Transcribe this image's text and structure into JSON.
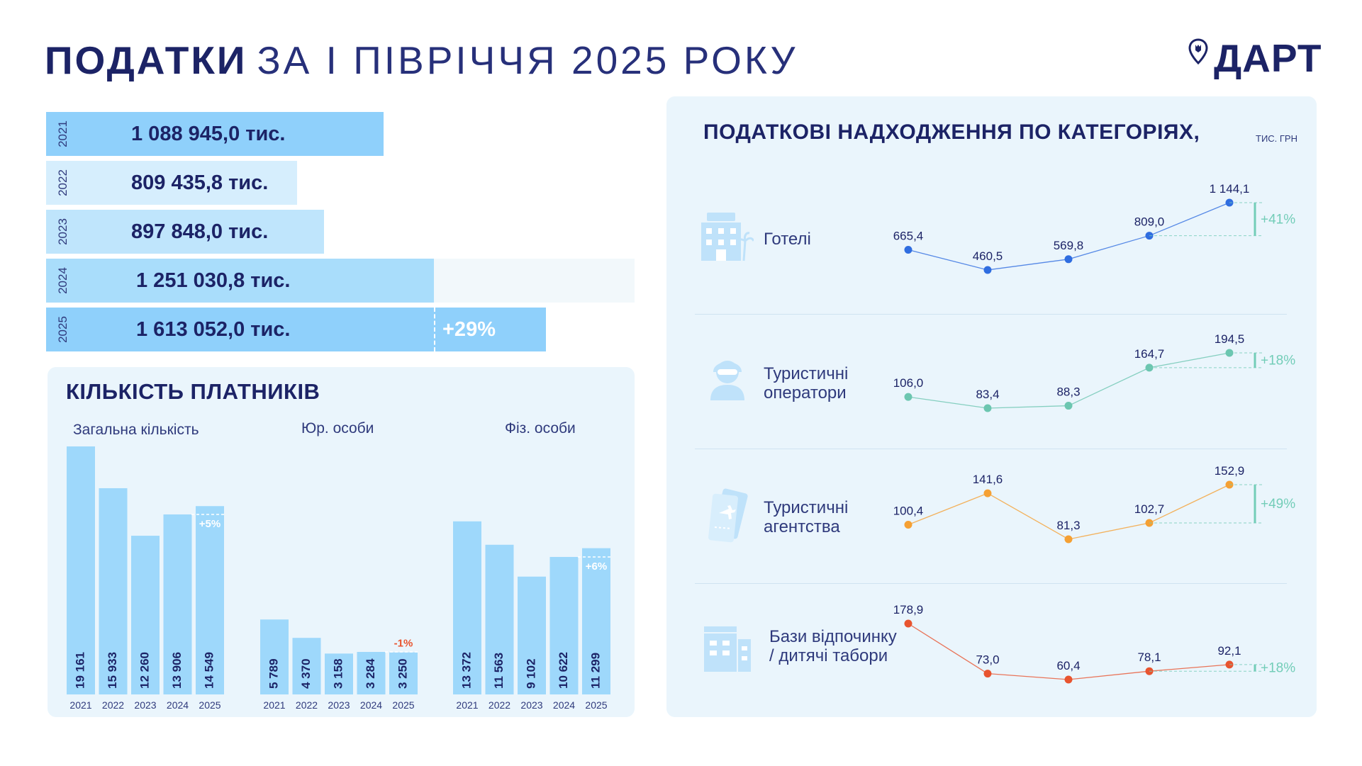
{
  "header": {
    "title_bold": "ПОДАТКИ",
    "title_rest": "ЗА І ПІВРІЧЧЯ 2025 РОКУ",
    "logo_text": "ДАРТ"
  },
  "totals": [
    {
      "year": "2021",
      "value": 1088945.0,
      "label": "1 088 945,0  тис."
    },
    {
      "year": "2022",
      "value": 809435.8,
      "label": "809 435,8  тис."
    },
    {
      "year": "2023",
      "value": 897848.0,
      "label": "897 848,0  тис."
    },
    {
      "year": "2024",
      "value": 1251030.8,
      "label": "1 251 030,8 тис."
    },
    {
      "year": "2025",
      "value": 1613052.0,
      "label": "1 613 052,0 тис.",
      "growth": "+29%"
    }
  ],
  "colors": {
    "navy": "#1c2366",
    "bar_2021": "#8fd0fb",
    "bar_2022": "#d6eefd",
    "bar_2023": "#bfe5fc",
    "bar_2024": "#a9ddfb",
    "bar_2025": "#8fd0fb",
    "payer_bar": "#9ed8fb",
    "growth_green": "#73cdb8",
    "growth_red": "#e8542f",
    "hotels": "#2f6de0",
    "operators": "#6cc6b0",
    "agencies": "#f5a033",
    "camps": "#e8542f"
  },
  "payers": {
    "title": "КІЛЬКІСТЬ ПЛАТНИКІВ",
    "groups": [
      {
        "label": "Загальна кількість",
        "years": [
          "2021",
          "2022",
          "2023",
          "2024",
          "2025"
        ],
        "values": [
          19161,
          15933,
          12260,
          13906,
          14549
        ],
        "value_labels": [
          "19 161",
          "15 933",
          "12 260",
          "13 906",
          "14 549"
        ],
        "growth": "+5%"
      },
      {
        "label": "Юр. особи",
        "years": [
          "2021",
          "2022",
          "2023",
          "2024",
          "2025"
        ],
        "values": [
          5789,
          4370,
          3158,
          3284,
          3250
        ],
        "value_labels": [
          "5 789",
          "4 370",
          "3 158",
          "3 284",
          "3 250"
        ],
        "growth": "-1%"
      },
      {
        "label": "Фіз. особи",
        "years": [
          "2021",
          "2022",
          "2023",
          "2024",
          "2025"
        ],
        "values": [
          13372,
          11563,
          9102,
          10622,
          11299
        ],
        "value_labels": [
          "13 372",
          "11 563",
          "9 102",
          "10 622",
          "11 299"
        ],
        "growth": "+6%"
      }
    ]
  },
  "categories": {
    "title": "ПОДАТКОВІ НАДХОДЖЕННЯ ПО КАТЕГОРІЯХ,",
    "unit": "ТИС. ГРН",
    "items": [
      {
        "name": "Готелі",
        "icon": "hotel-icon",
        "values": [
          665.4,
          460.5,
          569.8,
          809.0,
          1144.1
        ],
        "value_labels": [
          "665,4",
          "460,5",
          "569,8",
          "809,0",
          "1 144,1"
        ],
        "growth": "+41%"
      },
      {
        "name": "Туристичні оператори",
        "icon": "tour-operator-icon",
        "values": [
          106.0,
          83.4,
          88.3,
          164.7,
          194.5
        ],
        "value_labels": [
          "106,0",
          "83,4",
          "88,3",
          "164,7",
          "194,5"
        ],
        "growth": "+18%"
      },
      {
        "name": "Туристичні агентства",
        "icon": "plane-tickets-icon",
        "values": [
          100.4,
          141.6,
          81.3,
          102.7,
          152.9
        ],
        "value_labels": [
          "100,4",
          "141,6",
          "81,3",
          "102,7",
          "152,9"
        ],
        "growth": "+49%"
      },
      {
        "name": "Бази відпочинку / дитячі табори",
        "icon": "camp-building-icon",
        "values": [
          178.9,
          73.0,
          60.4,
          78.1,
          92.1
        ],
        "value_labels": [
          "178,9",
          "73,0",
          "60,4",
          "78,1",
          "92,1"
        ],
        "growth": "+18%"
      }
    ]
  },
  "chart_data": [
    {
      "type": "bar",
      "title": "ПОДАТКИ ЗА І ПІВРІЧЧЯ 2025 РОКУ",
      "categories": [
        "2021",
        "2022",
        "2023",
        "2024",
        "2025"
      ],
      "values": [
        1088945.0,
        809435.8,
        897848.0,
        1251030.8,
        1613052.0
      ],
      "annotations": [
        "+29%"
      ]
    },
    {
      "type": "bar",
      "title": "КІЛЬКІСТЬ ПЛАТНИКІВ",
      "categories": [
        "2021",
        "2022",
        "2023",
        "2024",
        "2025"
      ],
      "series": [
        {
          "name": "Загальна кількість",
          "values": [
            19161,
            15933,
            12260,
            13906,
            14549
          ]
        },
        {
          "name": "Юр. особи",
          "values": [
            5789,
            4370,
            3158,
            3284,
            3250
          ]
        },
        {
          "name": "Фіз. особи",
          "values": [
            13372,
            11563,
            9102,
            10622,
            11299
          ]
        }
      ],
      "annotations": [
        "+5%",
        "-1%",
        "+6%"
      ]
    },
    {
      "type": "line",
      "title": "ПОДАТКОВІ НАДХОДЖЕННЯ ПО КАТЕГОРІЯХ, ТИС. ГРН",
      "x": [
        "2021",
        "2022",
        "2023",
        "2024",
        "2025"
      ],
      "series": [
        {
          "name": "Готелі",
          "values": [
            665.4,
            460.5,
            569.8,
            809.0,
            1144.1
          ]
        },
        {
          "name": "Туристичні оператори",
          "values": [
            106.0,
            83.4,
            88.3,
            164.7,
            194.5
          ]
        },
        {
          "name": "Туристичні агентства",
          "values": [
            100.4,
            141.6,
            81.3,
            102.7,
            152.9
          ]
        },
        {
          "name": "Бази відпочинку / дитячі табори",
          "values": [
            178.9,
            73.0,
            60.4,
            78.1,
            92.1
          ]
        }
      ],
      "annotations": [
        "+41%",
        "+18%",
        "+49%",
        "+18%"
      ]
    }
  ]
}
